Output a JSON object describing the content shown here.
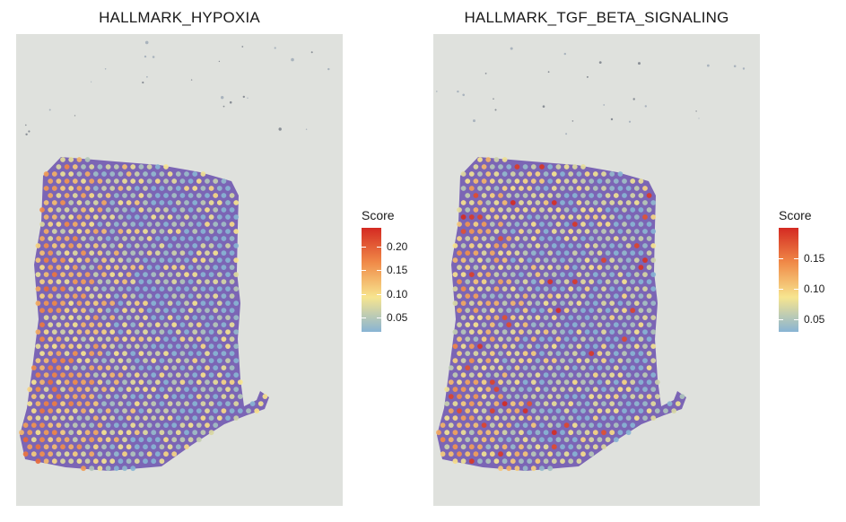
{
  "chart_data": [
    {
      "type": "heatmap",
      "title": "HALLMARK_HYPOXIA",
      "legend": {
        "title": "Score",
        "ticks": [
          0.05,
          0.1,
          0.15,
          0.2
        ],
        "tick_labels": [
          "0.05",
          "0.10",
          "0.15",
          "0.20"
        ],
        "range": [
          0.02,
          0.24
        ],
        "placement": "right",
        "colors": [
          "#88b4d4",
          "#f7e58f",
          "#f08a48",
          "#d42a22"
        ]
      }
    },
    {
      "type": "heatmap",
      "title": "HALLMARK_TGF_BETA_SIGNALING",
      "legend": {
        "title": "Score",
        "ticks": [
          0.05,
          0.1,
          0.15
        ],
        "tick_labels": [
          "0.05",
          "0.10",
          "0.15"
        ],
        "range": [
          0.03,
          0.2
        ],
        "placement": "right",
        "colors": [
          "#88b4d4",
          "#f7e58f",
          "#f08a48",
          "#d42a22"
        ]
      }
    }
  ],
  "colors": {
    "background": "#dfe1dd",
    "tissue": "#6a4fae"
  }
}
